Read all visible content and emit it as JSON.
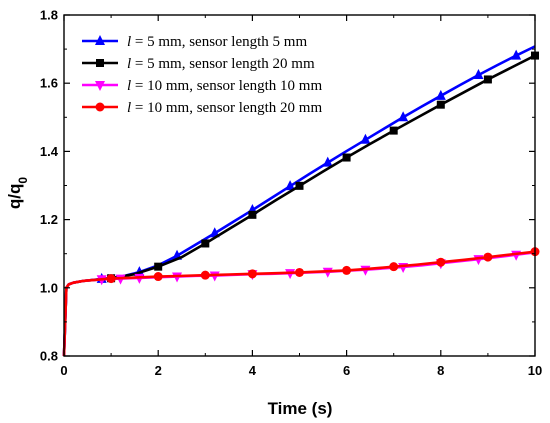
{
  "chart_data": {
    "type": "line",
    "title": "",
    "xlabel": "Time (s)",
    "ylabel_main": "q/q",
    "ylabel_sub": "0",
    "xlim": [
      0,
      10
    ],
    "ylim": [
      0.8,
      1.8
    ],
    "x_ticks": [
      0,
      2,
      4,
      6,
      8,
      10
    ],
    "y_ticks": [
      0.8,
      1.0,
      1.2,
      1.4,
      1.6,
      1.8
    ],
    "x_tick_labels": [
      "0",
      "2",
      "4",
      "6",
      "8",
      "10"
    ],
    "y_tick_labels": [
      "0.8",
      "1.0",
      "1.2",
      "1.4",
      "1.6",
      "1.8"
    ],
    "grid": false,
    "legend_position": "top-left",
    "series": [
      {
        "name": "l = 5 mm, sensor length 5 mm",
        "legend_l": "l",
        "legend_rest": " = 5  mm, sensor length  5  mm",
        "color": "#0000ff",
        "marker": "triangle-up",
        "x": [
          0,
          0.05,
          0.1,
          0.2,
          0.4,
          0.8,
          1.2,
          1.6,
          2.0,
          2.4,
          2.8,
          3.2,
          3.6,
          4.0,
          4.4,
          4.8,
          5.2,
          5.6,
          6.0,
          6.4,
          6.8,
          7.2,
          7.6,
          8.0,
          8.4,
          8.8,
          9.2,
          9.6,
          10.0
        ],
        "y": [
          0.8,
          1.0,
          1.01,
          1.015,
          1.02,
          1.026,
          1.032,
          1.046,
          1.066,
          1.094,
          1.127,
          1.16,
          1.194,
          1.228,
          1.263,
          1.298,
          1.333,
          1.367,
          1.401,
          1.434,
          1.467,
          1.5,
          1.532,
          1.563,
          1.594,
          1.624,
          1.653,
          1.681,
          1.708
        ],
        "marker_x": [
          0.8,
          1.6,
          2.4,
          3.2,
          4.0,
          4.8,
          5.6,
          6.4,
          7.2,
          8.0,
          8.8,
          9.6
        ]
      },
      {
        "name": "l = 5 mm, sensor length 20 mm",
        "legend_l": "l",
        "legend_rest": " = 5  mm, sensor length 20 mm",
        "color": "#000000",
        "marker": "square",
        "x": [
          0,
          0.05,
          0.1,
          0.2,
          0.4,
          0.8,
          1.0,
          1.5,
          2.0,
          2.5,
          3.0,
          3.5,
          4.0,
          4.5,
          5.0,
          5.5,
          6.0,
          6.5,
          7.0,
          7.5,
          8.0,
          8.5,
          9.0,
          9.5,
          10.0
        ],
        "y": [
          0.8,
          1.0,
          1.01,
          1.015,
          1.02,
          1.025,
          1.028,
          1.04,
          1.062,
          1.09,
          1.13,
          1.172,
          1.214,
          1.257,
          1.299,
          1.341,
          1.382,
          1.422,
          1.461,
          1.499,
          1.537,
          1.574,
          1.611,
          1.646,
          1.681
        ],
        "marker_x": [
          1.0,
          2.0,
          3.0,
          4.0,
          5.0,
          6.0,
          7.0,
          8.0,
          9.0,
          10.0
        ]
      },
      {
        "name": "l = 10 mm, sensor length 10 mm",
        "legend_l": "l",
        "legend_rest": " = 10 mm, sensor length 10 mm",
        "color": "#ff00ff",
        "marker": "triangle-down",
        "x": [
          0,
          0.05,
          0.1,
          0.2,
          0.4,
          0.8,
          1.2,
          1.6,
          2.0,
          2.4,
          2.8,
          3.2,
          3.6,
          4.0,
          4.4,
          4.8,
          5.2,
          5.6,
          6.0,
          6.4,
          6.8,
          7.2,
          7.6,
          8.0,
          8.4,
          8.8,
          9.2,
          9.6,
          10.0
        ],
        "y": [
          0.8,
          1.0,
          1.01,
          1.015,
          1.02,
          1.025,
          1.027,
          1.029,
          1.031,
          1.033,
          1.035,
          1.036,
          1.038,
          1.04,
          1.041,
          1.043,
          1.045,
          1.047,
          1.05,
          1.053,
          1.057,
          1.061,
          1.066,
          1.072,
          1.078,
          1.084,
          1.09,
          1.097,
          1.104
        ],
        "marker_x": [
          0.8,
          1.2,
          1.6,
          2.4,
          3.2,
          4.0,
          4.8,
          5.6,
          6.4,
          7.2,
          8.0,
          8.8,
          9.6
        ]
      },
      {
        "name": "l = 10 mm, sensor length 20 mm",
        "legend_l": "l",
        "legend_rest": " = 10 mm, sensor length 20 mm",
        "color": "#ff0000",
        "marker": "circle",
        "x": [
          0,
          0.05,
          0.1,
          0.2,
          0.4,
          0.8,
          1.0,
          1.5,
          2.0,
          2.5,
          3.0,
          3.5,
          4.0,
          4.5,
          5.0,
          5.5,
          6.0,
          6.5,
          7.0,
          7.5,
          8.0,
          8.5,
          9.0,
          9.5,
          10.0
        ],
        "y": [
          0.8,
          1.0,
          1.01,
          1.015,
          1.02,
          1.025,
          1.027,
          1.03,
          1.033,
          1.035,
          1.037,
          1.039,
          1.041,
          1.043,
          1.045,
          1.048,
          1.051,
          1.056,
          1.062,
          1.068,
          1.075,
          1.082,
          1.09,
          1.098,
          1.106
        ],
        "marker_x": [
          1.0,
          2.0,
          3.0,
          4.0,
          5.0,
          6.0,
          7.0,
          8.0,
          9.0,
          10.0
        ]
      }
    ]
  }
}
